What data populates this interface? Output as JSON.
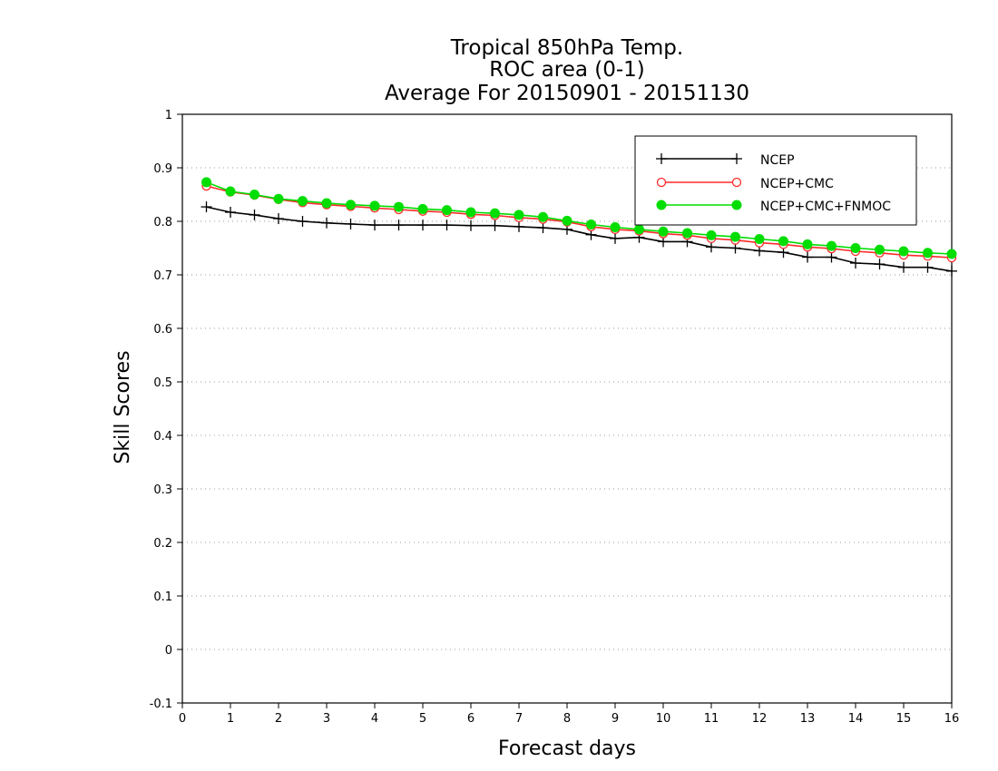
{
  "chart_data": {
    "type": "line",
    "title_lines": [
      "Tropical 850hPa Temp.",
      "ROC area (0-1)",
      "Average For 20150901 - 20151130"
    ],
    "xlabel": "Forecast days",
    "ylabel": "Skill Scores",
    "xlim": [
      0,
      16
    ],
    "ylim": [
      -0.1,
      1
    ],
    "x_ticks": [
      "0",
      "1",
      "2",
      "3",
      "4",
      "5",
      "6",
      "7",
      "8",
      "9",
      "10",
      "11",
      "12",
      "13",
      "14",
      "15",
      "16"
    ],
    "y_ticks": [
      "-0.1",
      "0",
      "0.1",
      "0.2",
      "0.3",
      "0.4",
      "0.5",
      "0.6",
      "0.7",
      "0.8",
      "0.9",
      "1"
    ],
    "grid": true,
    "legend_position": "top-right",
    "x": [
      0.5,
      1,
      1.5,
      2,
      2.5,
      3,
      3.5,
      4,
      4.5,
      5,
      5.5,
      6,
      6.5,
      7,
      7.5,
      8,
      8.5,
      9,
      9.5,
      10,
      10.5,
      11,
      11.5,
      12,
      12.5,
      13,
      13.5,
      14,
      14.5,
      15,
      15.5,
      16
    ],
    "series": [
      {
        "name": "NCEP",
        "color": "#000000",
        "marker": "plus",
        "values": [
          0.827,
          0.817,
          0.812,
          0.805,
          0.8,
          0.797,
          0.795,
          0.793,
          0.793,
          0.793,
          0.793,
          0.792,
          0.792,
          0.79,
          0.788,
          0.785,
          0.775,
          0.768,
          0.77,
          0.762,
          0.762,
          0.752,
          0.75,
          0.745,
          0.742,
          0.733,
          0.733,
          0.722,
          0.72,
          0.714,
          0.714,
          0.707
        ]
      },
      {
        "name": "NCEP+CMC",
        "color": "#ff2a2a",
        "marker": "open-circle",
        "values": [
          0.866,
          0.855,
          0.849,
          0.841,
          0.835,
          0.831,
          0.828,
          0.825,
          0.822,
          0.819,
          0.817,
          0.813,
          0.811,
          0.807,
          0.804,
          0.799,
          0.79,
          0.785,
          0.782,
          0.777,
          0.774,
          0.768,
          0.765,
          0.76,
          0.757,
          0.752,
          0.749,
          0.744,
          0.741,
          0.737,
          0.735,
          0.732
        ]
      },
      {
        "name": "NCEP+CMC+FNMOC",
        "color": "#00dd00",
        "marker": "filled-circle",
        "values": [
          0.873,
          0.856,
          0.85,
          0.842,
          0.838,
          0.834,
          0.831,
          0.829,
          0.827,
          0.823,
          0.821,
          0.817,
          0.815,
          0.812,
          0.808,
          0.801,
          0.794,
          0.789,
          0.785,
          0.781,
          0.778,
          0.774,
          0.771,
          0.767,
          0.763,
          0.757,
          0.754,
          0.75,
          0.747,
          0.744,
          0.741,
          0.739
        ]
      }
    ]
  }
}
